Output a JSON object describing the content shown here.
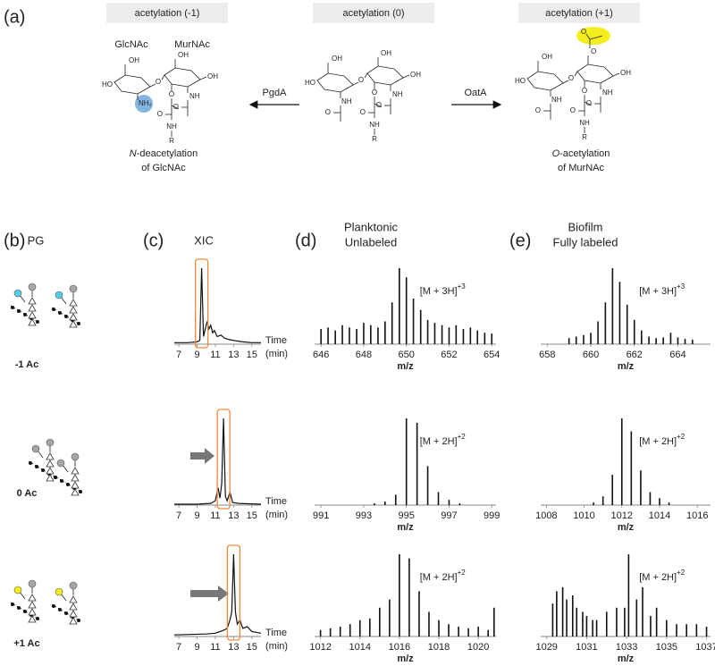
{
  "panel_a": {
    "label": "(a)",
    "boxes": [
      "acetylation (-1)",
      "acetylation (0)",
      "acetylation (+1)"
    ],
    "sugars": [
      "GlcNAc",
      "MurNAc"
    ],
    "enzymes": [
      "PgdA",
      "OatA"
    ],
    "captions": [
      {
        "italic": "N",
        "text": "-deacetylation",
        "line2": "of GlcNAc"
      },
      {
        "italic": "O",
        "text": "-acetylation",
        "line2": "of MurNAc"
      }
    ],
    "molecules": [
      {
        "r1left": "HO",
        "r1top": "OH",
        "bridge": "O",
        "r2right": "OH",
        "r2top": "OH",
        "r1N": "NH₂",
        "r2N": "NH",
        "r2ac": "O",
        "lacO": "O",
        "lacC": "O",
        "lacNH": "NH",
        "R": "R"
      },
      {
        "r1left": "HO",
        "r1top": "OH",
        "bridge": "O",
        "r2right": "OH",
        "r2top": "OH",
        "r1N": "NH",
        "r1ac": "O",
        "r2N": "NH",
        "r2ac": "O",
        "lacO": "O",
        "lacC": "O",
        "lacNH": "NH",
        "R": "R"
      },
      {
        "r1left": "HO",
        "r1top": "OH",
        "bridge": "O",
        "r2right": "OH",
        "r2top": "O",
        "oac": "O",
        "r1N": "NH",
        "r1ac": "O",
        "r2N": "NH",
        "r2ac": "O",
        "lacO": "O",
        "lacC": "O",
        "lacNH": "NH",
        "R": "R"
      }
    ]
  },
  "headers": [
    {
      "label": "(b)",
      "lines": [
        "PG"
      ]
    },
    {
      "label": "(c)",
      "lines": [
        "XIC"
      ]
    },
    {
      "label": "(d)",
      "lines": [
        "Planktonic",
        "Unlabeled"
      ]
    },
    {
      "label": "(e)",
      "lines": [
        "Biofilm",
        "Fully labeled"
      ]
    }
  ],
  "row_labels": [
    "-1 Ac",
    "0 Ac",
    "+1 Ac"
  ],
  "chart_data": [
    {
      "type": "line",
      "xlabel": "Time",
      "xlabel_unit": "(min)",
      "color": "#111111",
      "x": [
        6.5,
        8,
        9,
        9.3,
        9.5,
        9.7,
        9.9,
        10.1,
        10.3,
        10.5,
        10.7,
        10.9,
        11.2,
        11.6,
        12,
        12.5,
        13,
        13.5,
        14,
        15,
        16
      ],
      "values": [
        2,
        2,
        3,
        5,
        100,
        10,
        20,
        30,
        20,
        25,
        15,
        18,
        10,
        12,
        8,
        6,
        5,
        4,
        3,
        2,
        2
      ],
      "xlim": [
        6.5,
        16
      ],
      "xticks": [
        7,
        9,
        11,
        13,
        15
      ],
      "ylim": [
        0,
        100
      ]
    },
    {
      "type": "line",
      "xlabel": "Time",
      "xlabel_unit": "(min)",
      "color": "#111111",
      "x": [
        6.5,
        9,
        10.5,
        11,
        11.3,
        11.5,
        11.7,
        11.9,
        12.1,
        12.3,
        12.6,
        12.9,
        13.5,
        16
      ],
      "values": [
        1,
        1,
        2,
        5,
        20,
        8,
        25,
        100,
        10,
        5,
        15,
        3,
        2,
        1
      ],
      "xlim": [
        6.5,
        16
      ],
      "xticks": [
        7,
        9,
        11,
        13,
        15
      ],
      "ylim": [
        0,
        100
      ]
    },
    {
      "type": "line",
      "xlabel": "Time",
      "xlabel_unit": "(min)",
      "color": "#111111",
      "x": [
        6.5,
        10,
        11,
        11.5,
        12,
        12.3,
        12.6,
        12.8,
        13.0,
        13.2,
        13.4,
        13.7,
        14,
        14.5,
        15,
        16
      ],
      "values": [
        2,
        3,
        4,
        6,
        8,
        10,
        20,
        30,
        100,
        30,
        15,
        20,
        10,
        12,
        6,
        4
      ],
      "xlim": [
        6.5,
        16
      ],
      "xticks": [
        7,
        9,
        11,
        13,
        15
      ],
      "ylim": [
        0,
        100
      ]
    },
    {
      "type": "stem",
      "xlabel": "m/z",
      "annotation": "[M + 3H]",
      "annotation_sup": "+3",
      "color": "#111111",
      "x": [
        646.0,
        646.33,
        646.67,
        647.0,
        647.33,
        647.67,
        648.0,
        648.33,
        648.67,
        649.0,
        649.33,
        649.67,
        650.0,
        650.33,
        650.67,
        651.0,
        651.33,
        651.67,
        652.0,
        652.33,
        652.67,
        653.0,
        653.33,
        653.67,
        654.0
      ],
      "values": [
        20,
        22,
        18,
        25,
        22,
        20,
        28,
        25,
        22,
        30,
        55,
        100,
        88,
        60,
        45,
        32,
        28,
        25,
        22,
        25,
        20,
        22,
        18,
        15,
        14
      ],
      "xlim": [
        645.7,
        654.2
      ],
      "xticks": [
        646,
        648,
        650,
        652,
        654
      ],
      "ylim": [
        0,
        100
      ]
    },
    {
      "type": "stem",
      "xlabel": "m/z",
      "annotation": "[M + 2H]",
      "annotation_sup": "+2",
      "color": "#111111",
      "x": [
        993.5,
        994.0,
        994.5,
        995.0,
        995.5,
        996.0,
        996.5,
        997.0,
        997.5
      ],
      "values": [
        2,
        4,
        12,
        100,
        95,
        45,
        15,
        6,
        2
      ],
      "xlim": [
        990.7,
        999.2
      ],
      "xticks": [
        991,
        993,
        995,
        997,
        999
      ],
      "ylim": [
        0,
        100
      ]
    },
    {
      "type": "stem",
      "xlabel": "m/z",
      "annotation": "[M + 2H]",
      "annotation_sup": "+2",
      "color": "#111111",
      "x": [
        1012.0,
        1012.5,
        1013.0,
        1013.5,
        1014.0,
        1014.5,
        1015.0,
        1015.5,
        1016.0,
        1016.5,
        1017.0,
        1017.5,
        1018.0,
        1018.5,
        1019.0,
        1019.5,
        1020.0,
        1020.5,
        1020.8
      ],
      "values": [
        8,
        10,
        12,
        15,
        20,
        22,
        35,
        45,
        100,
        95,
        55,
        30,
        20,
        15,
        12,
        10,
        12,
        8,
        35
      ],
      "xlim": [
        1011.7,
        1020.9
      ],
      "xticks": [
        1012,
        1014,
        1016,
        1018,
        1020
      ],
      "ylim": [
        0,
        100
      ]
    },
    {
      "type": "stem",
      "xlabel": "m/z",
      "annotation": "[M + 3H]",
      "annotation_sup": "+3",
      "color": "#111111",
      "x": [
        659.0,
        659.33,
        659.67,
        660.0,
        660.33,
        660.67,
        661.0,
        661.33,
        661.67,
        662.0,
        662.33,
        662.67,
        663.0,
        663.33,
        663.67,
        664.0,
        664.33,
        664.67
      ],
      "values": [
        8,
        10,
        12,
        15,
        30,
        55,
        100,
        82,
        52,
        32,
        18,
        10,
        8,
        9,
        15,
        9,
        7,
        6
      ],
      "xlim": [
        657.7,
        665.5
      ],
      "xticks": [
        658,
        660,
        662,
        664
      ],
      "ylim": [
        0,
        100
      ]
    },
    {
      "type": "stem",
      "xlabel": "m/z",
      "annotation": "[M + 2H]",
      "annotation_sup": "+2",
      "color": "#111111",
      "x": [
        1010.5,
        1011.0,
        1011.5,
        1012.0,
        1012.5,
        1013.0,
        1013.5,
        1014.0,
        1014.5
      ],
      "values": [
        3,
        10,
        35,
        100,
        85,
        40,
        15,
        8,
        3
      ],
      "xlim": [
        1007.7,
        1016.7
      ],
      "xticks": [
        1008,
        1010,
        1012,
        1014,
        1016
      ],
      "ylim": [
        0,
        100
      ]
    },
    {
      "type": "stem",
      "xlabel": "m/z",
      "annotation": "[M + 2H]",
      "annotation_sup": "+2",
      "color": "#111111",
      "x": [
        1029.3,
        1029.5,
        1029.8,
        1030.0,
        1030.3,
        1030.5,
        1030.8,
        1031.0,
        1031.3,
        1031.5,
        1032.0,
        1032.5,
        1032.9,
        1033.1,
        1033.5,
        1033.8,
        1034.2,
        1034.5,
        1035.0,
        1035.5,
        1036.0,
        1036.5,
        1037.0
      ],
      "values": [
        40,
        55,
        60,
        45,
        50,
        35,
        30,
        25,
        20,
        20,
        30,
        35,
        35,
        100,
        45,
        60,
        25,
        35,
        20,
        15,
        15,
        15,
        12
      ],
      "xlim": [
        1028.7,
        1037.2
      ],
      "xticks": [
        1029,
        1031,
        1033,
        1035,
        1037
      ],
      "ylim": [
        0,
        100
      ]
    }
  ]
}
